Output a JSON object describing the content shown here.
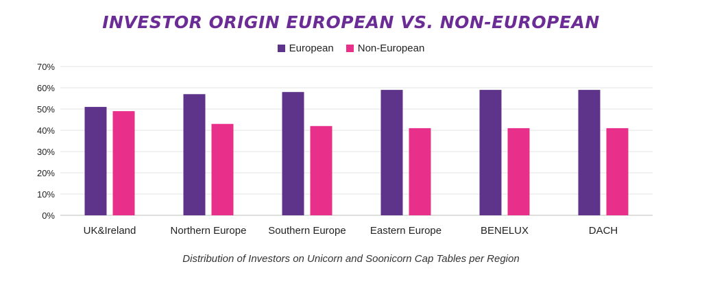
{
  "chart_data": {
    "type": "bar",
    "title": "INVESTOR ORIGIN EUROPEAN VS. NON-EUROPEAN",
    "caption": "Distribution of Investors on Unicorn and Soonicorn Cap Tables per Region",
    "categories": [
      "UK&Ireland",
      "Northern Europe",
      "Southern Europe",
      "Eastern Europe",
      "BENELUX",
      "DACH"
    ],
    "series": [
      {
        "name": "European",
        "color": "#5e348a",
        "values": [
          51,
          57,
          58,
          59,
          59,
          59
        ]
      },
      {
        "name": "Non-European",
        "color": "#e8308a",
        "values": [
          49,
          43,
          42,
          41,
          41,
          41
        ]
      }
    ],
    "ylim": [
      0,
      70
    ],
    "yticks": [
      "0%",
      "10%",
      "20%",
      "30%",
      "40%",
      "50%",
      "60%",
      "70%"
    ],
    "grid": true,
    "legend_position": "top-center"
  }
}
